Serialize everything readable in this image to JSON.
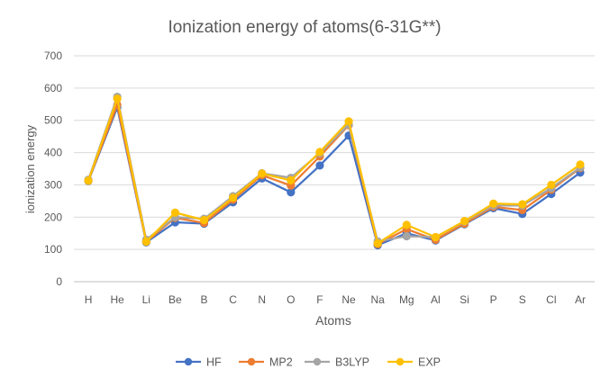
{
  "chart_data": {
    "type": "line",
    "title": "Ionization energy of atoms(6-31G**)",
    "xlabel": "Atoms",
    "ylabel": "ionization energy",
    "ylim": [
      0,
      700
    ],
    "yticks": [
      0,
      100,
      200,
      300,
      400,
      500,
      600,
      700
    ],
    "grid": true,
    "legend_position": "bottom",
    "categories": [
      "H",
      "He",
      "Li",
      "Be",
      "B",
      "C",
      "N",
      "O",
      "F",
      "Ne",
      "Na",
      "Mg",
      "Al",
      "Si",
      "P",
      "S",
      "Cl",
      "Ar"
    ],
    "series": [
      {
        "name": "HF",
        "color": "#4472C4",
        "values": [
          312,
          540,
          122,
          184,
          180,
          246,
          320,
          277,
          360,
          453,
          113,
          150,
          128,
          178,
          228,
          210,
          272,
          338
        ]
      },
      {
        "name": "MP2",
        "color": "#ED7D31",
        "values": [
          313,
          548,
          124,
          198,
          182,
          254,
          330,
          298,
          388,
          485,
          116,
          163,
          130,
          180,
          232,
          222,
          285,
          352
        ]
      },
      {
        "name": "B3LYP",
        "color": "#A5A5A5",
        "values": [
          316,
          573,
          130,
          200,
          195,
          265,
          336,
          322,
          398,
          487,
          125,
          141,
          138,
          186,
          236,
          236,
          290,
          354
        ]
      },
      {
        "name": "EXP",
        "color": "#FFC000",
        "values": [
          313,
          567,
          124,
          214,
          191,
          260,
          335,
          314,
          402,
          497,
          119,
          176,
          138,
          188,
          242,
          240,
          300,
          363
        ]
      }
    ]
  }
}
